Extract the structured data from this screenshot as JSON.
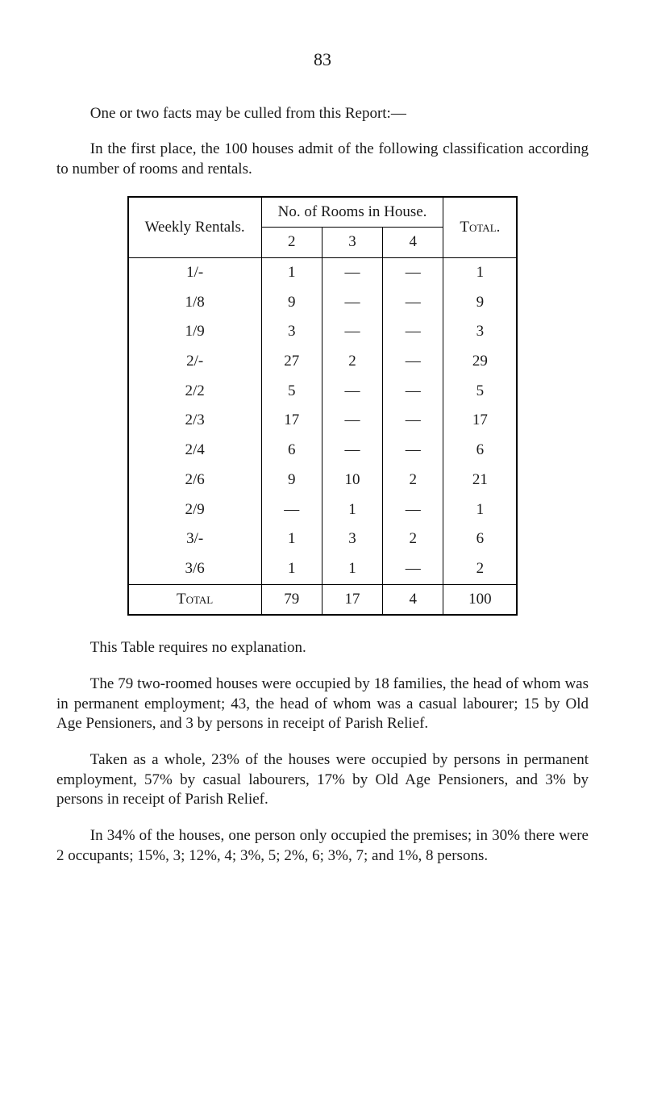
{
  "page_number": "83",
  "para1": "One or two facts may be culled from this Report:—",
  "para2": "In the first place, the 100 houses admit of the following classification according to number of rooms and rentals.",
  "table": {
    "col1_header": "Weekly Rentals.",
    "rooms_header": "No. of Rooms in House.",
    "total_header": "Total.",
    "subheads": [
      "2",
      "3",
      "4"
    ],
    "rows": [
      {
        "label": "1/-",
        "c2": "1",
        "c3": "—",
        "c4": "—",
        "total": "1"
      },
      {
        "label": "1/8",
        "c2": "9",
        "c3": "—",
        "c4": "—",
        "total": "9"
      },
      {
        "label": "1/9",
        "c2": "3",
        "c3": "—",
        "c4": "—",
        "total": "3"
      },
      {
        "label": "2/-",
        "c2": "27",
        "c3": "2",
        "c4": "—",
        "total": "29"
      },
      {
        "label": "2/2",
        "c2": "5",
        "c3": "—",
        "c4": "—",
        "total": "5"
      },
      {
        "label": "2/3",
        "c2": "17",
        "c3": "—",
        "c4": "—",
        "total": "17"
      },
      {
        "label": "2/4",
        "c2": "6",
        "c3": "—",
        "c4": "—",
        "total": "6"
      },
      {
        "label": "2/6",
        "c2": "9",
        "c3": "10",
        "c4": "2",
        "total": "21"
      },
      {
        "label": "2/9",
        "c2": "—",
        "c3": "1",
        "c4": "—",
        "total": "1"
      },
      {
        "label": "3/-",
        "c2": "1",
        "c3": "3",
        "c4": "2",
        "total": "6"
      },
      {
        "label": "3/6",
        "c2": "1",
        "c3": "1",
        "c4": "—",
        "total": "2"
      }
    ],
    "total_label": "Total",
    "total_c2": "79",
    "total_c3": "17",
    "total_c4": "4",
    "total_total": "100"
  },
  "para3": "This Table requires no explanation.",
  "para4": "The 79 two-roomed houses were occupied by 18 families, the head of whom was in permanent employment; 43, the head of whom was a casual labourer; 15 by Old Age Pensioners, and 3 by persons in receipt of Parish Relief.",
  "para5": "Taken as a whole, 23% of the houses were occupied by persons in permanent employment, 57% by casual labourers, 17% by Old Age Pensioners, and 3% by persons in receipt of Parish Relief.",
  "para6": "In 34% of the houses, one person only occupied the premises; in 30% there were 2 occupants; 15%, 3; 12%, 4; 3%, 5; 2%, 6; 3%, 7; and 1%, 8 persons."
}
